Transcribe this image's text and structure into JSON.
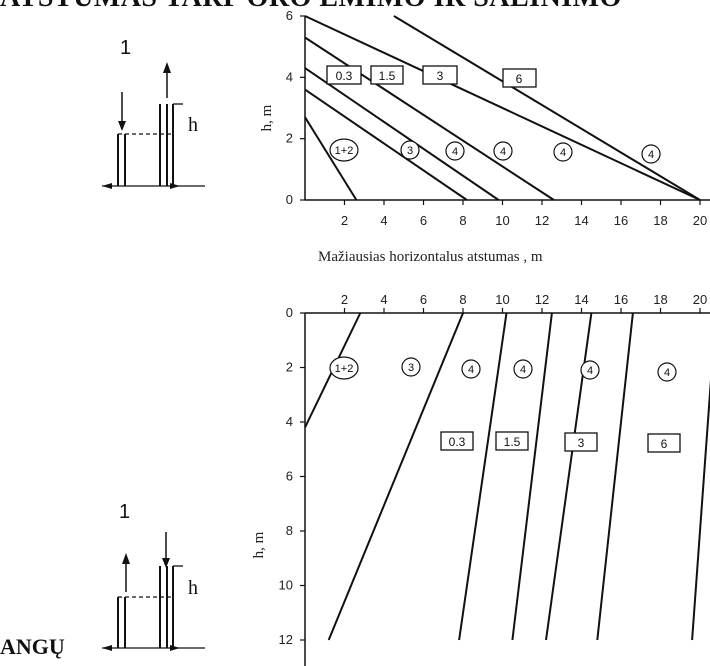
{
  "page": {
    "title": "ATSTUMAS TARP ORO ĖMIMO IR ŠALINIMO",
    "corner_word": "ANGŲ"
  },
  "diagrams": {
    "top": {
      "number": "1",
      "h_label": "h"
    },
    "bottom": {
      "number": "1",
      "h_label": "h"
    }
  },
  "chart_data": [
    {
      "id": "top-chart",
      "type": "line",
      "xlabel": "Mažiausias horizontalus atstumas , m",
      "ylabel": "h, m",
      "xlim": [
        0,
        20
      ],
      "ylim": [
        0,
        6
      ],
      "x_ticks": [
        "2",
        "4",
        "6",
        "8",
        "10",
        "12",
        "14",
        "16",
        "18",
        "20"
      ],
      "y_ticks": [
        "0",
        "2",
        "4",
        "6"
      ],
      "series": [
        {
          "x": [
            0,
            2.6
          ],
          "y": [
            2.7,
            0
          ]
        },
        {
          "x": [
            0,
            8.2
          ],
          "y": [
            3.6,
            0
          ]
        },
        {
          "x": [
            0,
            9.8
          ],
          "y": [
            4.3,
            0
          ]
        },
        {
          "x": [
            0,
            12.6
          ],
          "y": [
            5.3,
            0
          ]
        },
        {
          "x": [
            0,
            20
          ],
          "y": [
            6,
            0
          ]
        },
        {
          "x": [
            4.5,
            20
          ],
          "y": [
            6,
            0
          ]
        }
      ],
      "box_labels": [
        "0.3",
        "1.5",
        "3",
        "6"
      ],
      "circle_labels": [
        "1+2",
        "3",
        "4",
        "4",
        "4",
        "4"
      ]
    },
    {
      "id": "bottom-chart",
      "type": "line",
      "xlabel": "",
      "ylabel": "h, m",
      "xlim": [
        0,
        20
      ],
      "ylim": [
        0,
        12
      ],
      "y_inverted": true,
      "x_ticks": [
        "2",
        "4",
        "6",
        "8",
        "10",
        "12",
        "14",
        "16",
        "18",
        "20"
      ],
      "y_ticks": [
        "0",
        "2",
        "4",
        "6",
        "8",
        "10",
        "12"
      ],
      "series": [
        {
          "x": [
            2.8,
            0
          ],
          "y": [
            0,
            4.2
          ]
        },
        {
          "x": [
            8.0,
            1.2
          ],
          "y": [
            0,
            12
          ]
        },
        {
          "x": [
            10.2,
            7.8
          ],
          "y": [
            0,
            12
          ]
        },
        {
          "x": [
            12.5,
            10.5
          ],
          "y": [
            0,
            12
          ]
        },
        {
          "x": [
            14.5,
            12.2
          ],
          "y": [
            0,
            12
          ]
        },
        {
          "x": [
            16.6,
            14.8
          ],
          "y": [
            0,
            12
          ]
        },
        {
          "x": [
            20.8,
            19.6
          ],
          "y": [
            0,
            12
          ]
        }
      ],
      "box_labels": [
        "0.3",
        "1.5",
        "3",
        "6"
      ],
      "circle_labels": [
        "1+2",
        "3",
        "4",
        "4",
        "4",
        "4"
      ]
    }
  ]
}
